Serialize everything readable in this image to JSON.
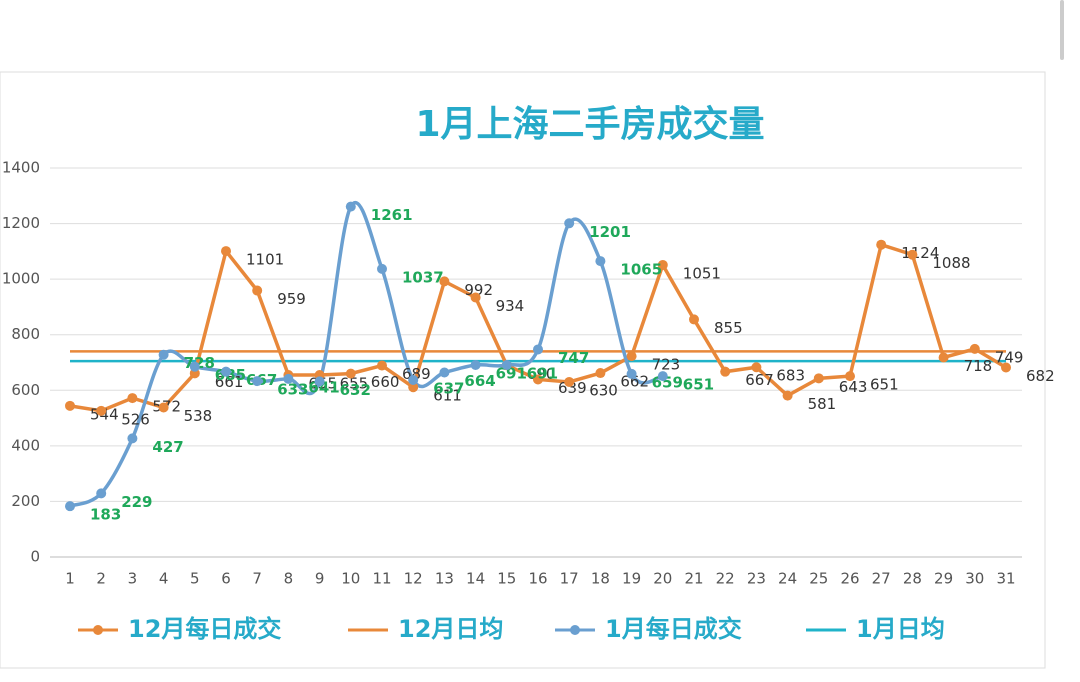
{
  "chart_data": {
    "type": "line",
    "title": "1月上海二手房成交量",
    "categories": [
      "1",
      "2",
      "3",
      "4",
      "5",
      "6",
      "7",
      "8",
      "9",
      "10",
      "11",
      "12",
      "13",
      "14",
      "15",
      "16",
      "17",
      "18",
      "19",
      "20",
      "21",
      "22",
      "23",
      "24",
      "25",
      "26",
      "27",
      "28",
      "29",
      "30",
      "31"
    ],
    "series": [
      {
        "name": "12月每日成交",
        "color": "#e8883a",
        "labels_color": "#333333",
        "smooth": false,
        "values": [
          544,
          526,
          572,
          538,
          661,
          1101,
          959,
          655,
          655,
          660,
          689,
          611,
          992,
          934,
          690,
          639,
          630,
          662,
          723,
          1051,
          855,
          667,
          683,
          581,
          643,
          651,
          1124,
          1088,
          718,
          749,
          682
        ]
      },
      {
        "name": "1月每日成交",
        "color": "#6a9fd0",
        "labels_color": "#1fa85a",
        "smooth": true,
        "values": [
          183,
          229,
          427,
          728,
          685,
          667,
          633,
          641,
          632,
          1261,
          1037,
          637,
          664,
          691,
          691,
          747,
          1201,
          1065,
          659,
          651,
          null,
          null,
          null,
          null,
          null,
          null,
          null,
          null,
          null,
          null,
          null
        ]
      }
    ],
    "reference_lines": [
      {
        "name": "12月日均",
        "color": "#e8883a",
        "value": 740
      },
      {
        "name": "1月日均",
        "color": "#1fb3c9",
        "value": 705
      }
    ],
    "ylim": [
      0,
      1400
    ],
    "yticks": [
      0,
      200,
      400,
      600,
      800,
      1000,
      1200,
      1400
    ],
    "grid": true
  }
}
